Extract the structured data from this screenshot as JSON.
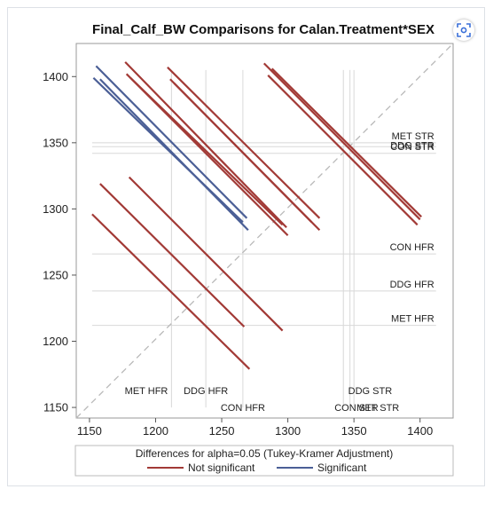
{
  "chart_data": {
    "type": "line",
    "title": "Final_Calf_BW Comparisons for Calan.Treatment*SEX",
    "xlim": [
      1140,
      1425
    ],
    "ylim": [
      1142,
      1425
    ],
    "xticks": [
      1150,
      1200,
      1250,
      1300,
      1350,
      1400
    ],
    "yticks": [
      1150,
      1200,
      1250,
      1300,
      1350,
      1400
    ],
    "legend": {
      "title": "Differences for alpha=0.05 (Tukey-Kramer Adjustment)",
      "placement": "bottom",
      "entries": [
        {
          "name": "Not significant",
          "color": "#a23a36"
        },
        {
          "name": "Significant",
          "color": "#4b5f96"
        }
      ]
    },
    "groups": [
      {
        "label": "MET HFR",
        "mean": 1212
      },
      {
        "label": "DDG HFR",
        "mean": 1238
      },
      {
        "label": "CON HFR",
        "mean": 1266
      },
      {
        "label": "CON STR",
        "mean": 1342
      },
      {
        "label": "DDG STR",
        "mean": 1347
      },
      {
        "label": "MET STR",
        "mean": 1350
      }
    ],
    "series": [
      {
        "name": "Not significant",
        "segments": [
          [
            1282,
            1410,
            1400,
            1292
          ],
          [
            1288,
            1406,
            1401,
            1294
          ],
          [
            1285,
            1401,
            1398,
            1288
          ],
          [
            1177,
            1411,
            1299,
            1286
          ],
          [
            1178,
            1402,
            1300,
            1280
          ],
          [
            1181,
            1399,
            1296,
            1288
          ],
          [
            1209,
            1407,
            1324,
            1293
          ],
          [
            1211,
            1398,
            1318,
            1290
          ],
          [
            1214,
            1395,
            1324,
            1284
          ],
          [
            1158,
            1319,
            1267,
            1211
          ],
          [
            1180,
            1324,
            1296,
            1208
          ],
          [
            1152,
            1296,
            1271,
            1179
          ]
        ]
      },
      {
        "name": "Significant",
        "segments": [
          [
            1155,
            1408,
            1269,
            1293
          ],
          [
            1153,
            1399,
            1266,
            1290
          ],
          [
            1158,
            1398,
            1270,
            1284
          ]
        ]
      }
    ],
    "colors": {
      "not_significant": "#a23a36",
      "significant": "#4b5f96",
      "diagonal": "#b9b9b9",
      "refline": "#d8d8d8"
    }
  }
}
